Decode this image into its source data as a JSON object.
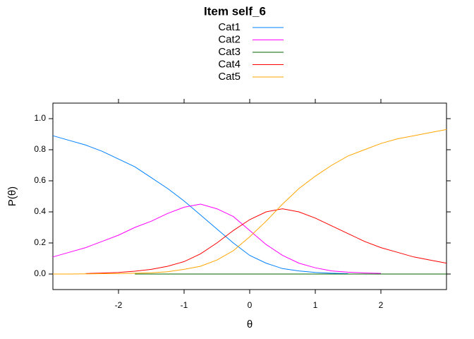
{
  "chart_data": {
    "type": "line",
    "title": "Item self_6",
    "x_label": "θ",
    "y_label": "P(θ)",
    "x": [
      -3,
      -2.75,
      -2.5,
      -2.25,
      -2,
      -1.75,
      -1.5,
      -1.25,
      -1,
      -0.75,
      -0.5,
      -0.25,
      0,
      0.25,
      0.5,
      0.75,
      1,
      1.25,
      1.5,
      1.75,
      2,
      2.25,
      2.5,
      2.75,
      3
    ],
    "series": [
      {
        "name": "Cat1",
        "color": "#0080ff",
        "values": [
          0.89,
          0.86,
          0.83,
          0.79,
          0.74,
          0.69,
          0.62,
          0.55,
          0.47,
          0.38,
          0.29,
          0.2,
          0.12,
          0.07,
          0.035,
          0.02,
          0.01,
          0.005,
          0.002,
          null,
          null,
          null,
          null,
          null,
          null
        ]
      },
      {
        "name": "Cat2",
        "color": "#ff00ff",
        "values": [
          0.11,
          0.14,
          0.17,
          0.21,
          0.25,
          0.3,
          0.34,
          0.39,
          0.43,
          0.45,
          0.42,
          0.37,
          0.28,
          0.19,
          0.12,
          0.07,
          0.04,
          0.02,
          0.012,
          0.007,
          0.004,
          null,
          null,
          null,
          null
        ]
      },
      {
        "name": "Cat3",
        "color": "#006400",
        "values": [
          null,
          null,
          null,
          null,
          null,
          0,
          0,
          0,
          0,
          0,
          0,
          0,
          0,
          0,
          0,
          0,
          0,
          0,
          0,
          0,
          0,
          0,
          0,
          0,
          0
        ]
      },
      {
        "name": "Cat4",
        "color": "#ff0000",
        "values": [
          null,
          null,
          0.003,
          0.006,
          0.01,
          0.018,
          0.03,
          0.05,
          0.08,
          0.13,
          0.2,
          0.28,
          0.35,
          0.4,
          0.42,
          0.4,
          0.36,
          0.31,
          0.26,
          0.21,
          0.17,
          0.14,
          0.11,
          0.09,
          0.07
        ]
      },
      {
        "name": "Cat5",
        "color": "#ffa500",
        "values": [
          0,
          0,
          0.001,
          0.002,
          0.003,
          0.005,
          0.008,
          0.015,
          0.03,
          0.05,
          0.09,
          0.15,
          0.24,
          0.34,
          0.45,
          0.55,
          0.63,
          0.7,
          0.76,
          0.8,
          0.84,
          0.87,
          0.89,
          0.91,
          0.93
        ]
      }
    ],
    "xlim": [
      -3,
      3
    ],
    "ylim": [
      -0.1,
      1.1
    ],
    "xticks": [
      -2,
      -1,
      0,
      1,
      2
    ],
    "yticks": [
      {
        "value": 0,
        "label": "0.0"
      },
      0.2,
      0.4,
      0.6,
      0.8,
      {
        "value": 1,
        "label": "1.0"
      }
    ]
  }
}
